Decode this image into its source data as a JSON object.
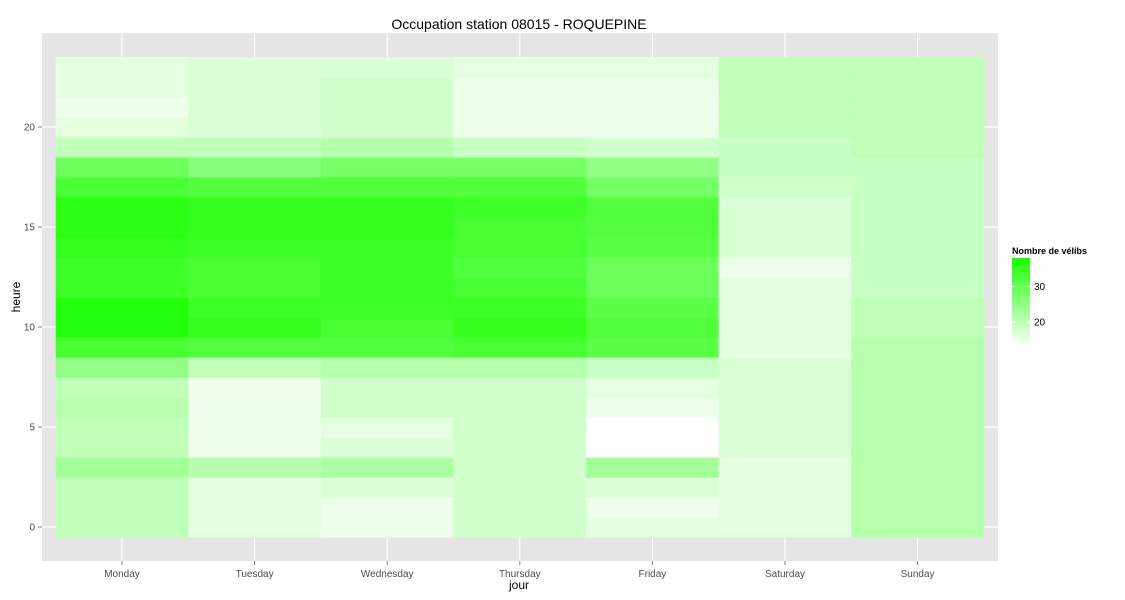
{
  "chart_data": {
    "type": "heatmap",
    "title": "Occupation station 08015 - ROQUEPINE",
    "xlabel": "jour",
    "ylabel": "heure",
    "categories": [
      "Monday",
      "Tuesday",
      "Wednesday",
      "Thursday",
      "Friday",
      "Saturday",
      "Sunday"
    ],
    "y": [
      0,
      1,
      2,
      3,
      4,
      5,
      6,
      7,
      8,
      9,
      10,
      11,
      12,
      13,
      14,
      15,
      16,
      17,
      18,
      19,
      20,
      21,
      22,
      23
    ],
    "y_ticks": [
      0,
      5,
      10,
      15,
      20
    ],
    "ylim": [
      -0.5,
      23.5
    ],
    "values": [
      [
        20,
        16,
        15,
        18,
        16,
        16,
        21
      ],
      [
        20,
        16,
        15,
        18,
        15,
        16,
        21
      ],
      [
        20,
        16,
        17,
        18,
        17,
        16,
        21
      ],
      [
        23,
        21,
        22,
        18,
        23,
        16,
        21
      ],
      [
        20,
        15,
        17,
        18,
        13,
        17,
        21
      ],
      [
        20,
        15,
        16,
        18,
        13,
        17,
        21
      ],
      [
        21,
        15,
        18,
        18,
        15,
        17,
        21
      ],
      [
        20,
        15,
        18,
        18,
        16,
        17,
        21
      ],
      [
        25,
        20,
        21,
        21,
        19,
        17,
        21
      ],
      [
        33,
        32,
        32,
        33,
        31,
        16,
        21
      ],
      [
        37,
        35,
        33,
        35,
        32,
        16,
        20
      ],
      [
        37,
        34,
        34,
        34,
        31,
        16,
        20
      ],
      [
        34,
        33,
        34,
        33,
        29,
        16,
        19
      ],
      [
        34,
        33,
        34,
        32,
        29,
        15,
        19
      ],
      [
        35,
        34,
        34,
        33,
        31,
        17,
        19
      ],
      [
        36,
        35,
        35,
        33,
        32,
        17,
        19
      ],
      [
        36,
        35,
        35,
        34,
        32,
        17,
        19
      ],
      [
        33,
        32,
        32,
        32,
        28,
        18,
        19
      ],
      [
        29,
        26,
        28,
        28,
        25,
        19,
        19
      ],
      [
        20,
        20,
        21,
        19,
        18,
        19,
        20
      ],
      [
        16,
        17,
        18,
        15,
        15,
        20,
        20
      ],
      [
        15,
        17,
        18,
        15,
        15,
        20,
        20
      ],
      [
        16,
        17,
        18,
        15,
        15,
        20,
        20
      ],
      [
        16,
        17,
        17,
        16,
        16,
        20,
        20
      ]
    ],
    "color_low": "#ffffff",
    "color_high": "#1aff00",
    "color_range": [
      13,
      38
    ],
    "legend": {
      "title": "Nombre de vélibs",
      "ticks": [
        20,
        30
      ],
      "position": "right"
    },
    "grid": true,
    "panel_background": "#e5e5e5",
    "grid_color": "#ffffff"
  }
}
